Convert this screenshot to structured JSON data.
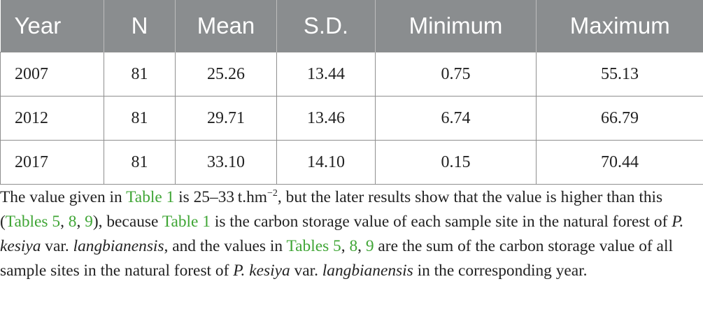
{
  "table": {
    "headers": [
      "Year",
      "N",
      "Mean",
      "S.D.",
      "Minimum",
      "Maximum"
    ],
    "rows": [
      [
        "2007",
        "81",
        "25.26",
        "13.44",
        "0.75",
        "55.13"
      ],
      [
        "2012",
        "81",
        "29.71",
        "13.46",
        "6.74",
        "66.79"
      ],
      [
        "2017",
        "81",
        "33.10",
        "14.10",
        "0.15",
        "70.44"
      ]
    ]
  },
  "paragraph": {
    "t1": "The value given in ",
    "link_table1": "Table 1",
    "t2": " is 25–33 t.hm",
    "sup": "−2",
    "t3": ", but the later results show that the value is higher than this (",
    "link_tables": "Tables 5",
    "sep1": ", ",
    "link_8": "8",
    "sep2": ", ",
    "link_9": "9",
    "t4": "), because ",
    "t5": " is the carbon storage value of each sample site in the natural forest of ",
    "species_abbr": "P. kesiya",
    "var": " var. ",
    "variety": "langbianensis",
    "t6": ", and the values in ",
    "t7": " are the sum of the carbon storage value of all sample sites in the natural forest of ",
    "t8": " in the corresponding year."
  },
  "colors": {
    "header_bg": "#8a8d8f",
    "link": "#3fa535",
    "text": "#222222"
  }
}
